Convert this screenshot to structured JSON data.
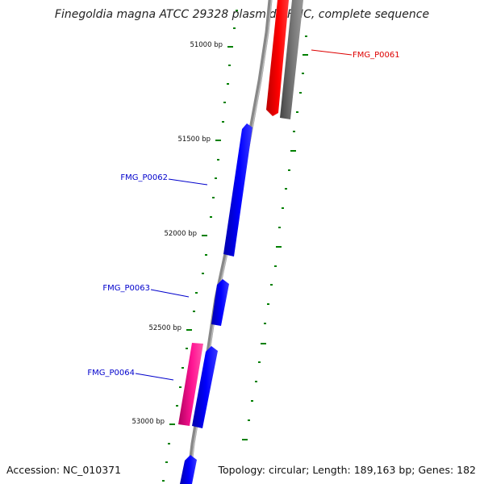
{
  "title": "Finegoldia magna ATCC 29328 plasmid pFMC, complete sequence",
  "footer": {
    "accession": "Accession: NC_010371",
    "topology": "Topology: circular; Length: 189,163 bp; Genes: 182"
  },
  "bp_labels": [
    "51000 bp",
    "51500 bp",
    "52000 bp",
    "52500 bp",
    "53000 bp"
  ],
  "genes": [
    {
      "label": "FMG_P0061",
      "color": "#dd0000"
    },
    {
      "label": "FMG_P0062",
      "color": "#0000cc"
    },
    {
      "label": "FMG_P0063",
      "color": "#0000cc"
    },
    {
      "label": "FMG_P0064",
      "color": "#0000cc"
    }
  ],
  "colors": {
    "backbone": "#888888",
    "forward_strand": "#0000ff",
    "reverse_strand": "#ff0000",
    "gc_skew": "#ff1493",
    "gray_track": "#666666",
    "ticks": "#008000"
  }
}
